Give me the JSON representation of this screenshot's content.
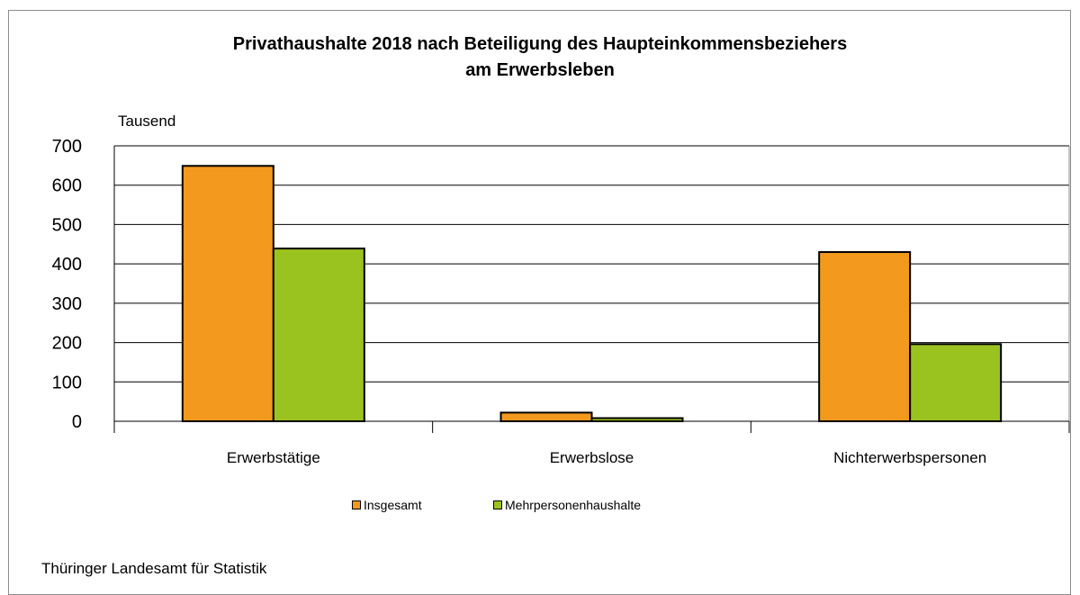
{
  "chart_data": {
    "type": "bar",
    "title_lines": [
      "Privathaushalte 2018 nach Beteiligung des Haupteinkommensbeziehers",
      "am Erwerbsleben"
    ],
    "ylabel": "Tausend",
    "xlabel": "",
    "ylim": [
      0,
      700
    ],
    "yticks": [
      0,
      100,
      200,
      300,
      400,
      500,
      600,
      700
    ],
    "grid": true,
    "legend_position": "bottom",
    "categories": [
      "Erwerbstätige",
      "Erwerbslose",
      "Nichterwerbspersonen"
    ],
    "series": [
      {
        "name": "Insgesamt",
        "color": "#f39a1e",
        "values": [
          649,
          22,
          430
        ]
      },
      {
        "name": "Mehrpersonenhaushalte",
        "color": "#9bc31f",
        "values": [
          439,
          8,
          196
        ]
      }
    ]
  },
  "source": "Thüringer Landesamt für Statistik"
}
